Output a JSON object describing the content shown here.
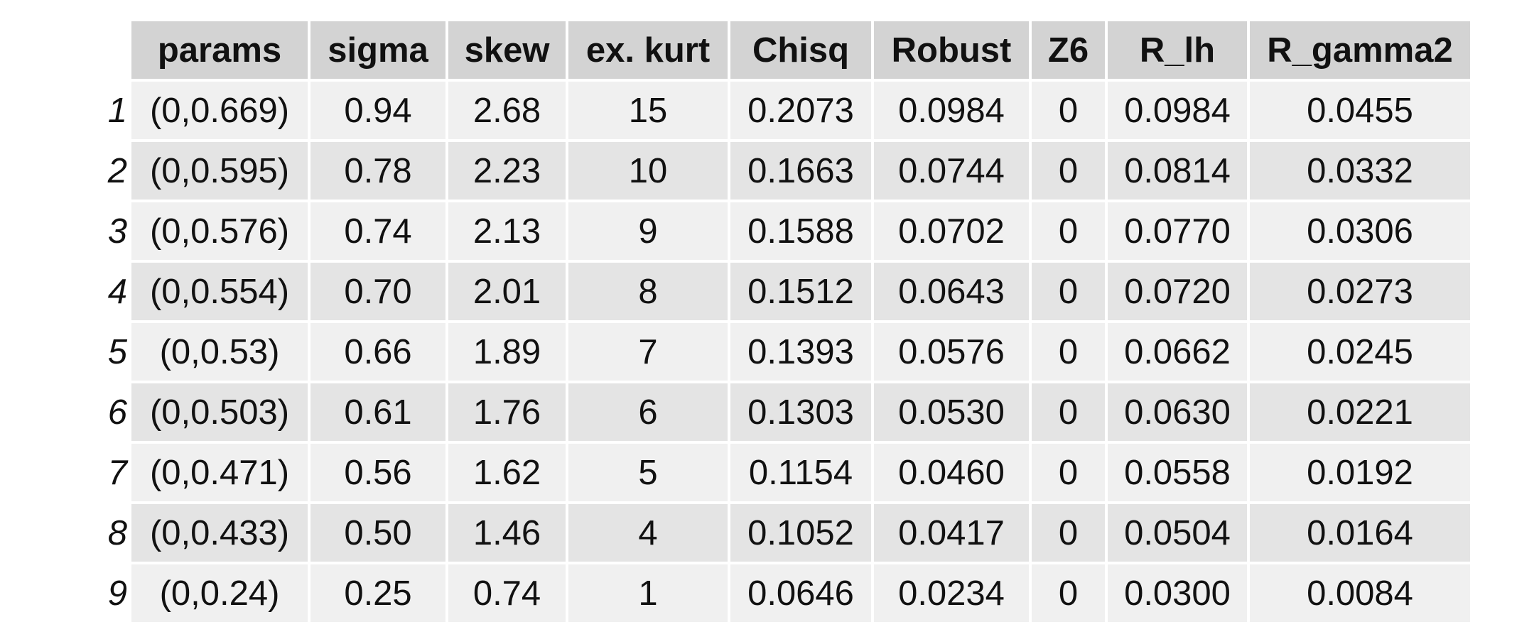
{
  "table": {
    "columns": [
      "params",
      "sigma",
      "skew",
      "ex. kurt",
      "Chisq",
      "Robust",
      "Z6",
      "R_lh",
      "R_gamma2"
    ],
    "rows": [
      {
        "index": "1",
        "cells": [
          "(0,0.669)",
          "0.94",
          "2.68",
          "15",
          "0.2073",
          "0.0984",
          "0",
          "0.0984",
          "0.0455"
        ]
      },
      {
        "index": "2",
        "cells": [
          "(0,0.595)",
          "0.78",
          "2.23",
          "10",
          "0.1663",
          "0.0744",
          "0",
          "0.0814",
          "0.0332"
        ]
      },
      {
        "index": "3",
        "cells": [
          "(0,0.576)",
          "0.74",
          "2.13",
          "9",
          "0.1588",
          "0.0702",
          "0",
          "0.0770",
          "0.0306"
        ]
      },
      {
        "index": "4",
        "cells": [
          "(0,0.554)",
          "0.70",
          "2.01",
          "8",
          "0.1512",
          "0.0643",
          "0",
          "0.0720",
          "0.0273"
        ]
      },
      {
        "index": "5",
        "cells": [
          "(0,0.53)",
          "0.66",
          "1.89",
          "7",
          "0.1393",
          "0.0576",
          "0",
          "0.0662",
          "0.0245"
        ]
      },
      {
        "index": "6",
        "cells": [
          "(0,0.503)",
          "0.61",
          "1.76",
          "6",
          "0.1303",
          "0.0530",
          "0",
          "0.0630",
          "0.0221"
        ]
      },
      {
        "index": "7",
        "cells": [
          "(0,0.471)",
          "0.56",
          "1.62",
          "5",
          "0.1154",
          "0.0460",
          "0",
          "0.0558",
          "0.0192"
        ]
      },
      {
        "index": "8",
        "cells": [
          "(0,0.433)",
          "0.50",
          "1.46",
          "4",
          "0.1052",
          "0.0417",
          "0",
          "0.0504",
          "0.0164"
        ]
      },
      {
        "index": "9",
        "cells": [
          "(0,0.24)",
          "0.25",
          "0.74",
          "1",
          "0.0646",
          "0.0234",
          "0",
          "0.0300",
          "0.0084"
        ]
      }
    ]
  }
}
